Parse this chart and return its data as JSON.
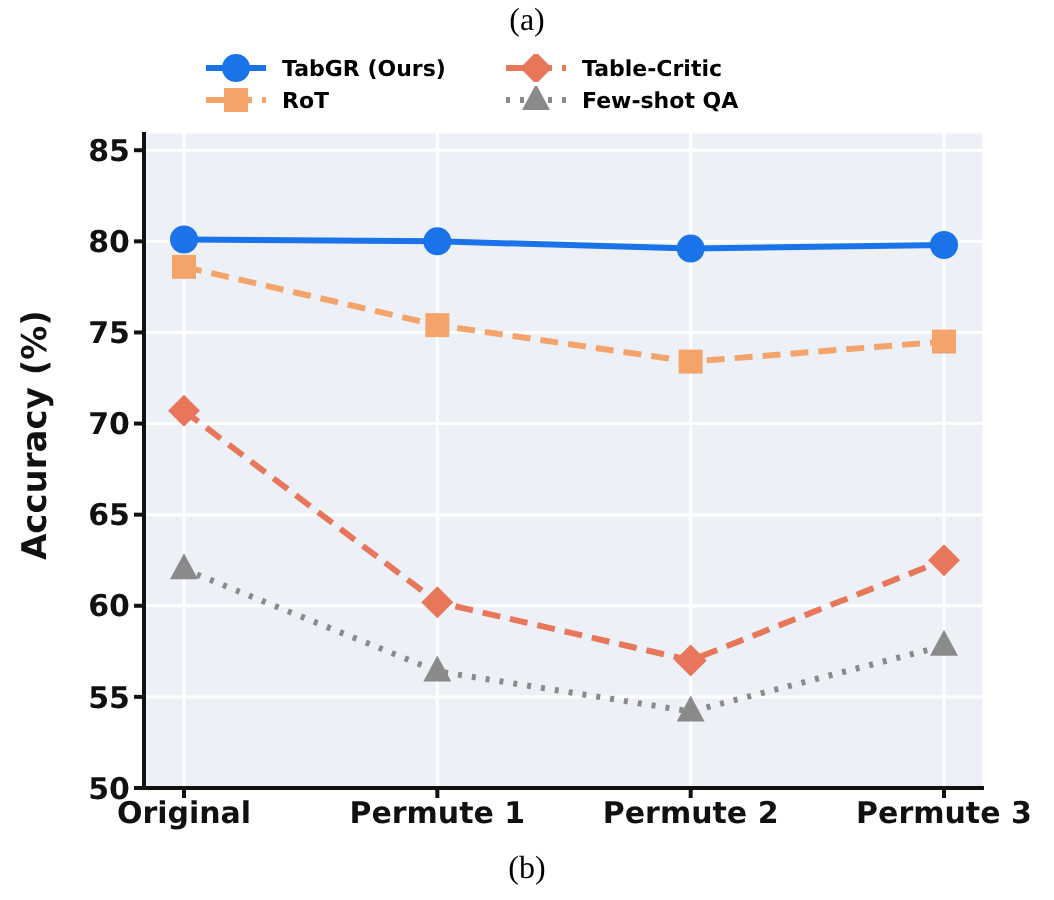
{
  "chart_data": {
    "type": "line",
    "ylabel": "Accuracy (%)",
    "categories": [
      "Original",
      "Permute 1",
      "Permute 2",
      "Permute 3"
    ],
    "series": [
      {
        "name": "TabGR (Ours)",
        "color": "#1a73e8",
        "values": [
          80.1,
          80.0,
          79.6,
          79.8
        ],
        "marker": "circle",
        "line_style": "solid"
      },
      {
        "name": "RoT",
        "color": "#f4a46a",
        "values": [
          78.6,
          75.4,
          73.4,
          74.5
        ],
        "marker": "square",
        "line_style": "dashed"
      },
      {
        "name": "Table-Critic",
        "color": "#e8765a",
        "values": [
          70.7,
          60.2,
          57.0,
          62.5
        ],
        "marker": "diamond",
        "line_style": "dashed"
      },
      {
        "name": "Few-shot QA",
        "color": "#8a8a8a",
        "values": [
          62.0,
          56.4,
          54.2,
          57.8
        ],
        "marker": "triangle",
        "line_style": "dotted"
      }
    ],
    "ylim": [
      50,
      86
    ],
    "yticks": [
      50,
      55,
      60,
      65,
      70,
      75,
      80,
      85
    ],
    "grid": true,
    "legend": "top",
    "annotations": [
      "(a)",
      "(b)"
    ]
  }
}
